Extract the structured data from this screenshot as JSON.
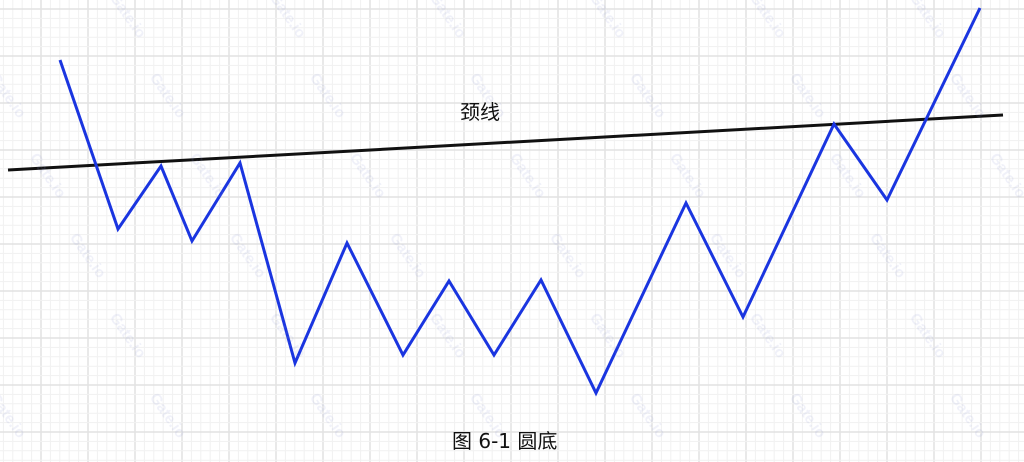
{
  "neckline_label": "颈线",
  "caption": "图 6-1 圆底",
  "watermark": "Gate.io",
  "colors": {
    "price_line": "#1a35e0",
    "neckline": "#111111",
    "grid_major": "#e2e2e2",
    "grid_minor": "#f1f1f1",
    "background": "#ffffff"
  }
}
